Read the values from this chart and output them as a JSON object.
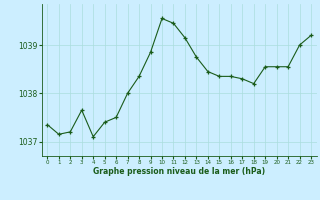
{
  "x": [
    0,
    1,
    2,
    3,
    4,
    5,
    6,
    7,
    8,
    9,
    10,
    11,
    12,
    13,
    14,
    15,
    16,
    17,
    18,
    19,
    20,
    21,
    22,
    23
  ],
  "y": [
    1037.35,
    1037.15,
    1037.2,
    1037.65,
    1037.1,
    1037.4,
    1037.5,
    1038.0,
    1038.35,
    1038.85,
    1039.55,
    1039.45,
    1039.15,
    1038.75,
    1038.45,
    1038.35,
    1038.35,
    1038.3,
    1038.2,
    1038.55,
    1038.55,
    1038.55,
    1039.0,
    1039.2
  ],
  "ylim": [
    1036.7,
    1039.85
  ],
  "yticks": [
    1037,
    1038,
    1039
  ],
  "bg_color": "#cceeff",
  "line_color": "#1a5c1a",
  "marker_color": "#1a5c1a",
  "grid_color": "#aadddd",
  "xlabel": "Graphe pression niveau de la mer (hPa)",
  "xlabel_color": "#1a5c1a",
  "tick_color": "#1a5c1a",
  "border_color": "#1a5c1a"
}
